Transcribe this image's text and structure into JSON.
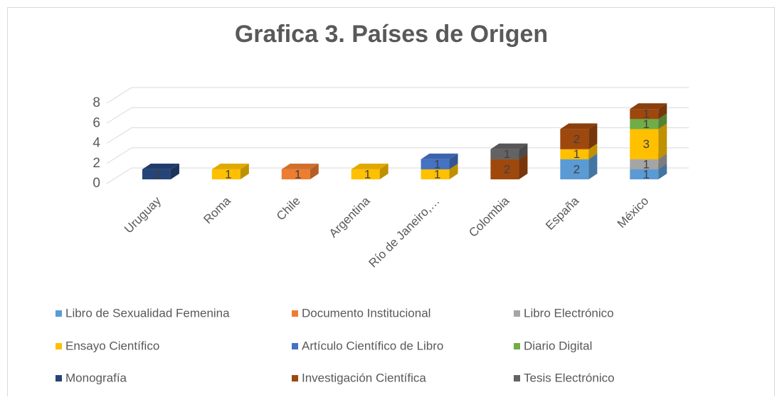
{
  "chart_data": {
    "type": "bar3d_stacked",
    "title": "Grafica 3. Países de Origen",
    "categories": [
      "Uruguay",
      "Roma",
      "Chile",
      "Argentina",
      "Río de Janeiro,…",
      "Colombia",
      "España",
      "México"
    ],
    "series": [
      {
        "name": "Libro de Sexualidad Femenina",
        "color": "#5b9bd5",
        "values": [
          null,
          null,
          null,
          null,
          null,
          null,
          2,
          1
        ]
      },
      {
        "name": "Documento Institucional",
        "color": "#ed7d31",
        "values": [
          null,
          null,
          1,
          null,
          null,
          null,
          null,
          null
        ]
      },
      {
        "name": "Libro Electrónico",
        "color": "#a5a5a5",
        "values": [
          null,
          null,
          null,
          null,
          null,
          null,
          null,
          1
        ]
      },
      {
        "name": "Ensayo Científico",
        "color": "#ffc000",
        "values": [
          null,
          1,
          null,
          1,
          1,
          null,
          1,
          3
        ]
      },
      {
        "name": "Artículo Científico de Libro",
        "color": "#4472c4",
        "values": [
          null,
          null,
          null,
          null,
          1,
          null,
          null,
          null
        ]
      },
      {
        "name": "Diario Digital",
        "color": "#70ad47",
        "values": [
          null,
          null,
          null,
          null,
          null,
          null,
          null,
          1
        ]
      },
      {
        "name": "Monografía",
        "color": "#264478",
        "values": [
          1,
          null,
          null,
          null,
          null,
          null,
          null,
          null
        ]
      },
      {
        "name": "Investigación Científica",
        "color": "#9e480e",
        "values": [
          null,
          null,
          null,
          null,
          null,
          2,
          2,
          1
        ]
      },
      {
        "name": "Tesis Electrónico",
        "color": "#636363",
        "values": [
          null,
          null,
          null,
          null,
          null,
          1,
          null,
          null
        ]
      }
    ],
    "ylim": [
      0,
      8
    ],
    "yticks": [
      0,
      2,
      4,
      6,
      8
    ],
    "grid": true,
    "legend": "bottom"
  }
}
